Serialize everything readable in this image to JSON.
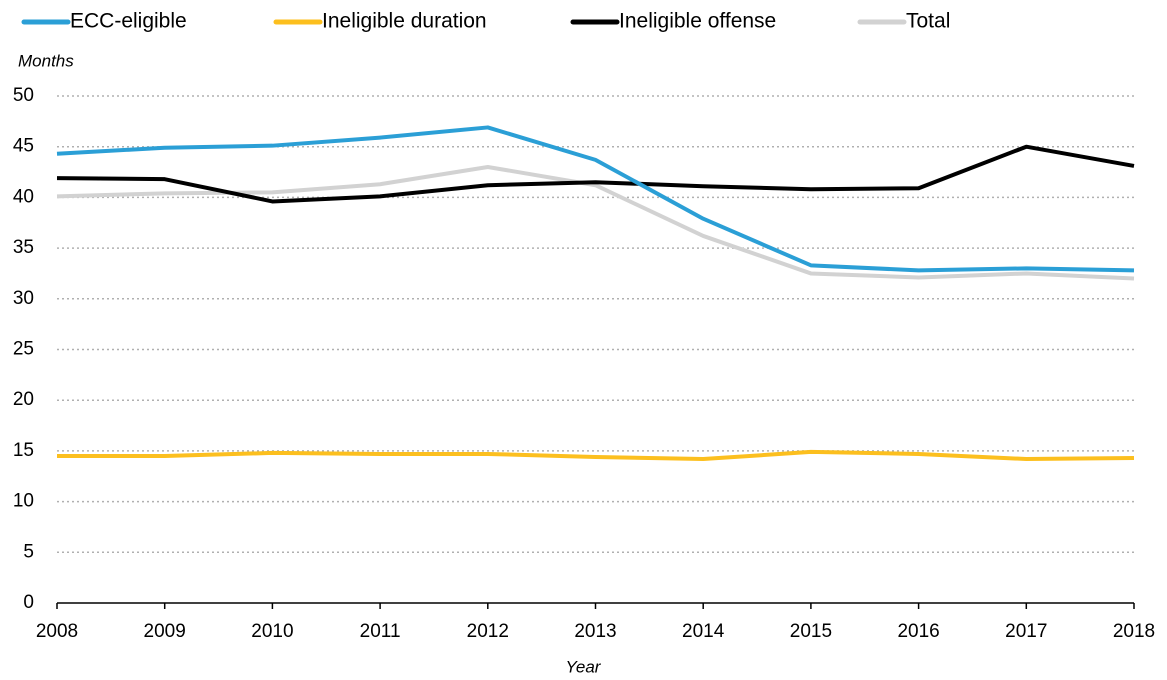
{
  "chart_data": {
    "type": "line",
    "y_label": "Months",
    "x_label": "Year",
    "categories": [
      "2008",
      "2009",
      "2010",
      "2011",
      "2012",
      "2013",
      "2014",
      "2015",
      "2016",
      "2017",
      "2018"
    ],
    "series": [
      {
        "name": "ECC-eligible",
        "color": "#2b9fd6",
        "values": [
          44.3,
          44.9,
          45.1,
          45.9,
          46.9,
          43.7,
          37.9,
          33.3,
          32.8,
          33.0,
          32.8
        ]
      },
      {
        "name": "Ineligible duration",
        "color": "#fcbf1e",
        "values": [
          14.5,
          14.5,
          14.8,
          14.7,
          14.7,
          14.4,
          14.2,
          14.9,
          14.7,
          14.2,
          14.3
        ]
      },
      {
        "name": "Ineligible offense",
        "color": "#000000",
        "values": [
          41.9,
          41.8,
          39.6,
          40.1,
          41.2,
          41.5,
          41.1,
          40.8,
          40.9,
          45.0,
          43.1
        ]
      },
      {
        "name": "Total",
        "color": "#d2d2d2",
        "values": [
          40.1,
          40.4,
          40.5,
          41.3,
          43.0,
          41.2,
          36.2,
          32.5,
          32.1,
          32.5,
          32.0
        ]
      }
    ],
    "ylim": [
      0,
      50
    ],
    "yticks": [
      0,
      5,
      10,
      15,
      20,
      25,
      30,
      35,
      40,
      45,
      50
    ],
    "grid": true
  }
}
